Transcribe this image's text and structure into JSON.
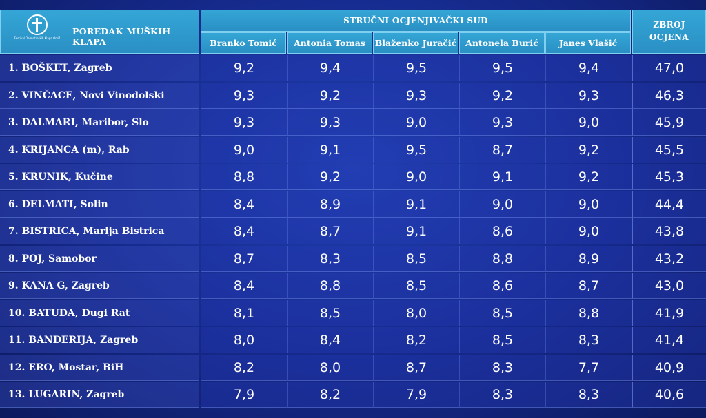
{
  "logo": {
    "text": "Festival Dalmatinskih Klapa Omiš",
    "icon": "festival-logo-icon"
  },
  "header": {
    "title": "POREDAK MUŠKIH KLAPA",
    "jury": "STRUČNI OCJENJIVAČKI SUD",
    "total_line1": "ZBROJ",
    "total_line2": "OCJENA",
    "judges": [
      "Branko Tomić",
      "Antonia Tomas",
      "Blaženko Juračić",
      "Antonela Burić",
      "Janes Vlašić"
    ]
  },
  "colors": {
    "header_bg": "#2a8fc4",
    "table_bg": "#15298a"
  },
  "rows": [
    {
      "name": "1.  BOŠKET, Zagreb",
      "scores": [
        "9,2",
        "9,4",
        "9,5",
        "9,5",
        "9,4"
      ],
      "total": "47,0"
    },
    {
      "name": "2.  VINČACE, Novi Vinodolski",
      "scores": [
        "9,3",
        "9,2",
        "9,3",
        "9,2",
        "9,3"
      ],
      "total": "46,3"
    },
    {
      "name": "3.  DALMARI, Maribor, Slo",
      "scores": [
        "9,3",
        "9,3",
        "9,0",
        "9,3",
        "9,0"
      ],
      "total": "45,9"
    },
    {
      "name": "4.  KRIJANCA (m), Rab",
      "scores": [
        "9,0",
        "9,1",
        "9,5",
        "8,7",
        "9,2"
      ],
      "total": "45,5"
    },
    {
      "name": "5.  KRUNIK, Kučine",
      "scores": [
        "8,8",
        "9,2",
        "9,0",
        "9,1",
        "9,2"
      ],
      "total": "45,3"
    },
    {
      "name": "6.  DELMATI, Solin",
      "scores": [
        "8,4",
        "8,9",
        "9,1",
        "9,0",
        "9,0"
      ],
      "total": "44,4"
    },
    {
      "name": "7.  BISTRICA, Marija Bistrica",
      "scores": [
        "8,4",
        "8,7",
        "9,1",
        "8,6",
        "9,0"
      ],
      "total": "43,8"
    },
    {
      "name": "8.  POJ, Samobor",
      "scores": [
        "8,7",
        "8,3",
        "8,5",
        "8,8",
        "8,9"
      ],
      "total": "43,2"
    },
    {
      "name": "9.  KANA G, Zagreb",
      "scores": [
        "8,4",
        "8,8",
        "8,5",
        "8,6",
        "8,7"
      ],
      "total": "43,0"
    },
    {
      "name": "10. BATUDA, Dugi Rat",
      "scores": [
        "8,1",
        "8,5",
        "8,0",
        "8,5",
        "8,8"
      ],
      "total": "41,9"
    },
    {
      "name": "11. BANDERIJA, Zagreb",
      "scores": [
        "8,0",
        "8,4",
        "8,2",
        "8,5",
        "8,3"
      ],
      "total": "41,4"
    },
    {
      "name": "12. ERO, Mostar, BiH",
      "scores": [
        "8,2",
        "8,0",
        "8,7",
        "8,3",
        "7,7"
      ],
      "total": "40,9"
    },
    {
      "name": "13. LUGARIN, Zagreb",
      "scores": [
        "7,9",
        "8,2",
        "7,9",
        "8,3",
        "8,3"
      ],
      "total": "40,6"
    }
  ]
}
